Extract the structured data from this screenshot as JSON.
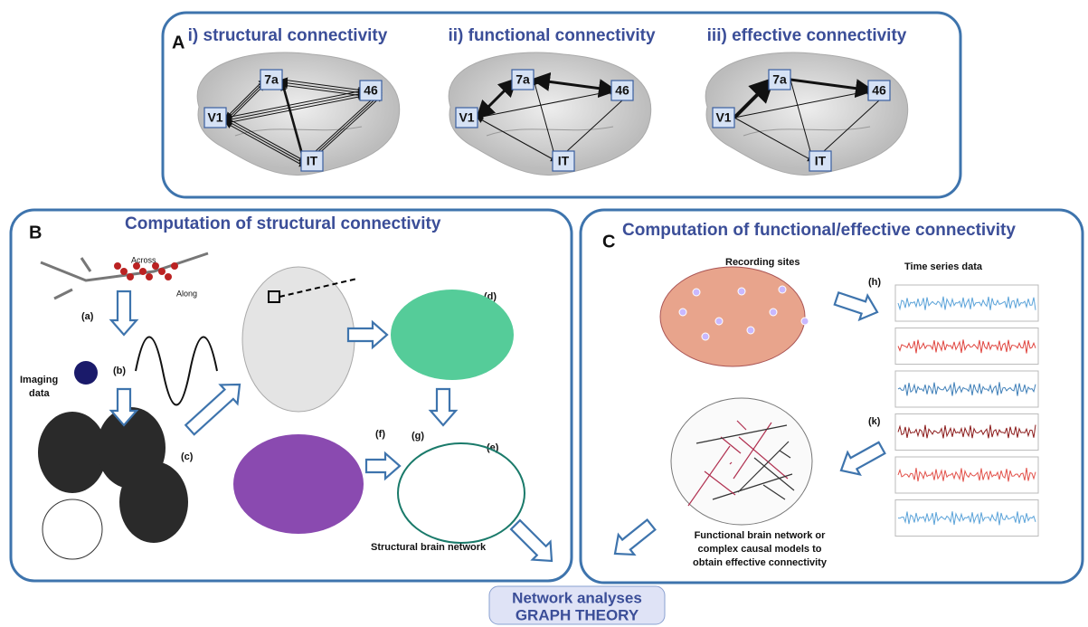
{
  "panel_a": {
    "label": "A",
    "diagrams": [
      {
        "title": "i) structural connectivity",
        "nodes": [
          "7a",
          "46",
          "V1",
          "IT"
        ]
      },
      {
        "title": "ii) functional connectivity",
        "nodes": [
          "7a",
          "46",
          "V1",
          "IT"
        ]
      },
      {
        "title": "iii) effective connectivity",
        "nodes": [
          "7a",
          "46",
          "V1",
          "IT"
        ]
      }
    ]
  },
  "panel_b": {
    "label": "B",
    "title": "Computation of structural connectivity",
    "across": "Across",
    "along": "Along",
    "steps": [
      "(a)",
      "(b)",
      "(c)",
      "(d)",
      "(e)",
      "(f)",
      "(g)"
    ],
    "imaging_data": [
      "Imaging",
      "data"
    ],
    "caption": "Structural brain network"
  },
  "panel_c": {
    "label": "C",
    "title": "Computation of functional/effective connectivity",
    "recording_sites": "Recording sites",
    "time_series": "Time series data",
    "steps": [
      "(h)",
      "(k)"
    ],
    "caption": [
      "Functional brain network or",
      "complex causal models to",
      "obtain effective connectivity"
    ]
  },
  "footer": {
    "line1": "Network analyses",
    "line2": "GRAPH THEORY"
  }
}
